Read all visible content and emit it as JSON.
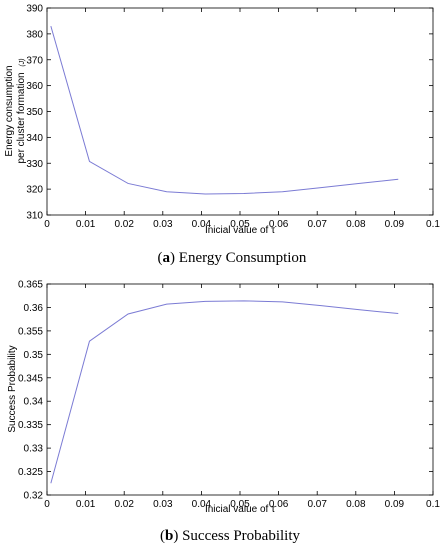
{
  "chart_data": [
    {
      "type": "line",
      "x": [
        0.001,
        0.011,
        0.021,
        0.031,
        0.041,
        0.051,
        0.061,
        0.071,
        0.081,
        0.091
      ],
      "series": [
        {
          "values": [
            383,
            330.7,
            322.2,
            319.0,
            318.1,
            318.3,
            319.0,
            320.6,
            322.2,
            323.8
          ],
          "color": "#7b7bd4"
        }
      ],
      "xlabel": "Inicial value of τ",
      "ylabel_lines": [
        "Energy consumption",
        "per cluster formation"
      ],
      "ylabel_unit": "(J)",
      "xlim": [
        0,
        0.1
      ],
      "ylim": [
        310,
        390
      ],
      "xticks": [
        "0",
        "0.01",
        "0.02",
        "0.03",
        "0.04",
        "0.05",
        "0.06",
        "0.07",
        "0.08",
        "0.09",
        "0.1"
      ],
      "yticks": [
        "310",
        "320",
        "330",
        "340",
        "350",
        "360",
        "370",
        "380",
        "390"
      ],
      "caption_letter": "a",
      "caption_text": "Energy Consumption",
      "grid": false
    },
    {
      "type": "line",
      "x": [
        0.001,
        0.011,
        0.021,
        0.031,
        0.041,
        0.051,
        0.061,
        0.071,
        0.081,
        0.091
      ],
      "series": [
        {
          "values": [
            0.3225,
            0.3528,
            0.3586,
            0.3607,
            0.3613,
            0.3614,
            0.3612,
            0.3604,
            0.3595,
            0.3587
          ],
          "color": "#7b7bd4"
        }
      ],
      "xlabel": "Inicial value of τ",
      "ylabel": "Success Probability",
      "xlim": [
        0,
        0.1
      ],
      "ylim": [
        0.32,
        0.365
      ],
      "xticks": [
        "0",
        "0.01",
        "0.02",
        "0.03",
        "0.04",
        "0.05",
        "0.06",
        "0.07",
        "0.08",
        "0.09",
        "0.1"
      ],
      "yticks": [
        "0.32",
        "0.325",
        "0.33",
        "0.335",
        "0.34",
        "0.345",
        "0.35",
        "0.355",
        "0.36",
        "0.365"
      ],
      "caption_letter": "b",
      "caption_text": "Success Probability",
      "grid": false
    }
  ]
}
